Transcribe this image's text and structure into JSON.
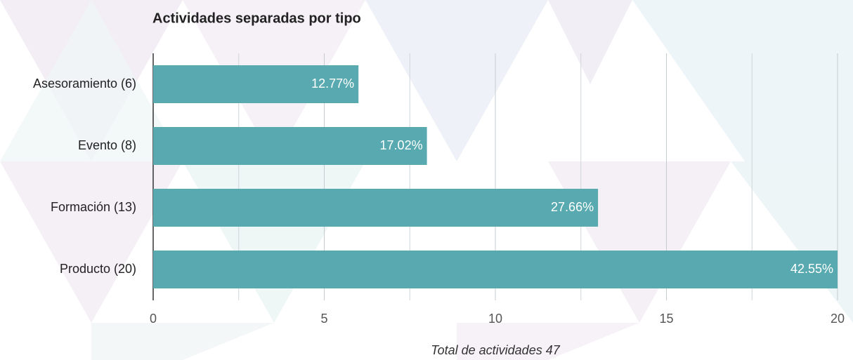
{
  "chart_data": {
    "type": "hbar",
    "title": "Actividades separadas por tipo",
    "xlabel": "Total de actividades 47",
    "categories": [
      "Asesoramiento (6)",
      "Evento (8)",
      "Formación (13)",
      "Producto (20)"
    ],
    "values": [
      6,
      8,
      13,
      20
    ],
    "percentages": {
      "values": [
        12.77,
        17.02,
        27.66,
        42.55
      ],
      "value_labels": [
        "12.77%",
        "17.02%",
        "27.66%",
        "42.55%"
      ]
    },
    "color": "#58aab0",
    "xlim": [
      0,
      20
    ],
    "xticks": [
      0,
      5,
      10,
      15,
      20
    ],
    "minor_xticks": [
      2.5,
      7.5,
      12.5,
      17.5
    ],
    "grid": true
  }
}
